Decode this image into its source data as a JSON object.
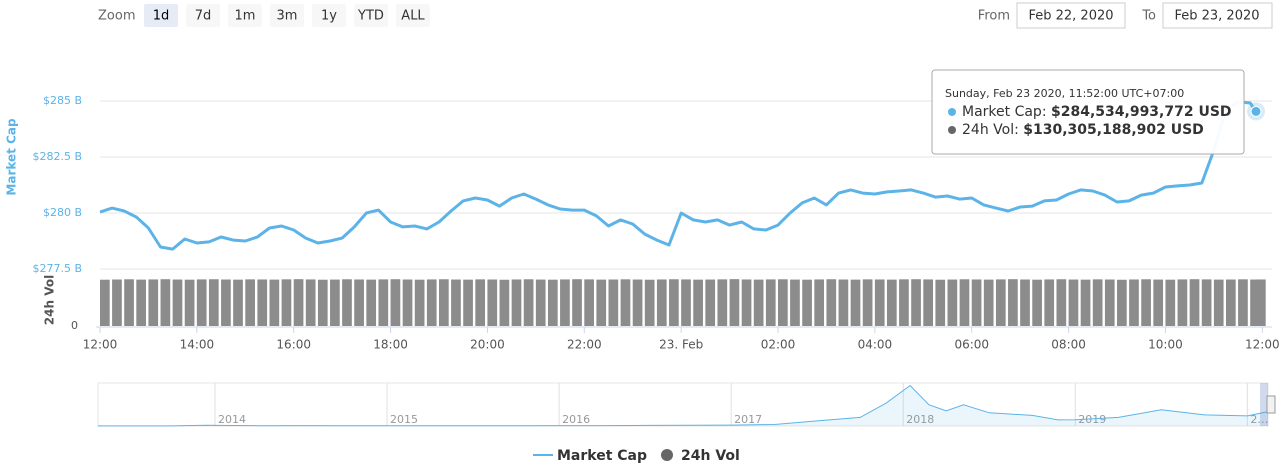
{
  "range_selector": {
    "label": "Zoom",
    "buttons": [
      "1d",
      "7d",
      "1m",
      "3m",
      "1y",
      "YTD",
      "ALL"
    ]
  },
  "date_inputs": {
    "from_label": "From",
    "from": "Feb 22, 2020",
    "to_label": "To",
    "to": "Feb 23, 2020"
  },
  "chart_data": {
    "type": "line",
    "y_label": "Market Cap",
    "y2_label": "24h Vol",
    "x": [
      0,
      0.25,
      0.5,
      0.75,
      1,
      1.25,
      1.5,
      1.75,
      2,
      2.25,
      2.5,
      2.75,
      3,
      3.25,
      3.5,
      3.75,
      4,
      4.25,
      4.5,
      4.75,
      5,
      5.25,
      5.5,
      5.75,
      6,
      6.25,
      6.5,
      6.75,
      7,
      7.25,
      7.5,
      7.75,
      8,
      8.25,
      8.5,
      8.75,
      9,
      9.25,
      9.5,
      9.75,
      10,
      10.25,
      10.5,
      10.75,
      11,
      11.25,
      11.5,
      11.75,
      12,
      12.25,
      12.5,
      12.75,
      13,
      13.25,
      13.5,
      13.75,
      14,
      14.25,
      14.5,
      14.75,
      15,
      15.25,
      15.5,
      15.75,
      16,
      16.25,
      16.5,
      16.75,
      17,
      17.25,
      17.5,
      17.75,
      18,
      18.25,
      18.5,
      18.75,
      19,
      19.25,
      19.5,
      19.75,
      20,
      20.25,
      20.5,
      20.75,
      21,
      21.25,
      21.5,
      21.75,
      22,
      22.25,
      22.5,
      22.75,
      23,
      23.25,
      23.5,
      23.75,
      23.87
    ],
    "series": [
      {
        "name": "Market Cap",
        "type": "line",
        "color": "#5cb3e8",
        "values": [
          280.04,
          280.22,
          280.09,
          279.82,
          279.33,
          278.48,
          278.39,
          278.84,
          278.66,
          278.71,
          278.93,
          278.79,
          278.75,
          278.93,
          279.33,
          279.42,
          279.24,
          278.88,
          278.66,
          278.75,
          278.88,
          279.38,
          280.0,
          280.13,
          279.6,
          279.38,
          279.42,
          279.29,
          279.6,
          280.09,
          280.54,
          280.67,
          280.58,
          280.31,
          280.67,
          280.85,
          280.62,
          280.36,
          280.18,
          280.13,
          280.13,
          279.87,
          279.42,
          279.69,
          279.51,
          279.06,
          278.79,
          278.57,
          280.0,
          279.69,
          279.6,
          279.69,
          279.46,
          279.6,
          279.29,
          279.24,
          279.46,
          280.0,
          280.45,
          280.67,
          280.36,
          280.89,
          281.03,
          280.89,
          280.85,
          280.94,
          280.98,
          281.03,
          280.89,
          280.71,
          280.76,
          280.62,
          280.67,
          280.36,
          280.22,
          280.09,
          280.27,
          280.31,
          280.54,
          280.58,
          280.85,
          281.03,
          280.98,
          280.8,
          280.49,
          280.54,
          280.8,
          280.89,
          281.16,
          281.21,
          281.25,
          281.34,
          282.81,
          284.6,
          284.96,
          284.91,
          284.534993772
        ]
      },
      {
        "name": "24h Vol",
        "type": "column",
        "axis": "y2",
        "color": "#8c8c8c",
        "values": [
          129.6,
          130.2,
          130.8,
          129.9,
          130.4,
          131.0,
          130.1,
          129.7,
          130.5,
          130.9,
          130.2,
          129.8,
          130.6,
          130.3,
          129.9,
          130.7,
          131.1,
          130.4,
          129.6,
          130.0,
          130.8,
          130.3,
          129.9,
          130.5,
          131.0,
          130.2,
          129.7,
          130.4,
          130.9,
          130.1,
          129.8,
          130.6,
          130.2,
          129.5,
          130.3,
          130.8,
          130.0,
          129.7,
          130.4,
          131.0,
          130.5,
          129.9,
          130.2,
          130.7,
          130.1,
          129.6,
          130.3,
          130.9,
          130.4,
          129.8,
          130.1,
          130.6,
          131.2,
          130.3,
          129.9,
          130.5,
          130.8,
          130.0,
          129.7,
          130.4,
          130.9,
          130.2,
          129.8,
          130.6,
          130.3,
          129.9,
          130.7,
          131.0,
          130.4,
          129.6,
          130.1,
          130.8,
          130.3,
          129.9,
          130.5,
          131.1,
          130.2,
          129.7,
          130.4,
          130.9,
          130.1,
          129.8,
          130.6,
          130.2,
          129.5,
          130.3,
          130.8,
          130.0,
          129.7,
          130.4,
          131.0,
          130.5,
          129.9,
          130.2,
          130.7,
          130.1,
          130.305188902
        ]
      }
    ],
    "xlim": [
      0,
      24.2
    ],
    "xticks": [
      {
        "value": 0,
        "label": "12:00"
      },
      {
        "value": 2,
        "label": "14:00"
      },
      {
        "value": 4,
        "label": "16:00"
      },
      {
        "value": 6,
        "label": "18:00"
      },
      {
        "value": 8,
        "label": "20:00"
      },
      {
        "value": 10,
        "label": "22:00"
      },
      {
        "value": 12,
        "label": "23. Feb"
      },
      {
        "value": 14,
        "label": "02:00"
      },
      {
        "value": 16,
        "label": "04:00"
      },
      {
        "value": 18,
        "label": "06:00"
      },
      {
        "value": 20,
        "label": "08:00"
      },
      {
        "value": 22,
        "label": "10:00"
      },
      {
        "value": 24,
        "label": "12:00"
      }
    ],
    "ylim": [
      277.5,
      287.5
    ],
    "yticks": [
      {
        "value": 277.5,
        "label": "$277.5 B"
      },
      {
        "value": 280,
        "label": "$280 B"
      },
      {
        "value": 282.5,
        "label": "$282.5 B"
      },
      {
        "value": 285,
        "label": "$285 B"
      }
    ],
    "y2lim": [
      0,
      140
    ],
    "y2ticks": [
      0
    ],
    "grid": true,
    "tooltip": {
      "title": "Sunday, Feb 23 2020, 11:52:00 UTC+07:00",
      "rows": [
        {
          "label": "Market Cap:",
          "value": "$284,534,993,772 USD"
        },
        {
          "label": "24h Vol:",
          "value": "$130,305,188,902 USD"
        }
      ]
    },
    "navigator": {
      "type": "area",
      "color": "#5cb3e8",
      "x": [
        2013.32,
        2013.5,
        2013.75,
        2013.95,
        2014.1,
        2014.25,
        2014.5,
        2014.75,
        2015,
        2015.25,
        2015.5,
        2015.75,
        2016,
        2016.25,
        2016.5,
        2016.75,
        2017,
        2017.25,
        2017.5,
        2017.75,
        2017.9,
        2018.04,
        2018.15,
        2018.25,
        2018.35,
        2018.5,
        2018.75,
        2018.9,
        2019,
        2019.25,
        2019.5,
        2019.75,
        2020,
        2020.12
      ],
      "values": [
        1.5,
        1.2,
        2,
        13,
        10,
        6,
        8,
        5,
        4,
        3.5,
        4,
        5,
        7,
        8,
        12,
        13,
        17,
        30,
        100,
        170,
        450,
        800,
        420,
        300,
        420,
        260,
        210,
        120,
        125,
        170,
        320,
        220,
        200,
        285
      ],
      "xlim": [
        2013.32,
        2020.12
      ],
      "ylim": [
        0,
        850
      ],
      "xticks": [
        2014,
        2015,
        2016,
        2017,
        2018,
        2019,
        {
          "value": 2020,
          "label": "2…"
        }
      ]
    }
  }
}
